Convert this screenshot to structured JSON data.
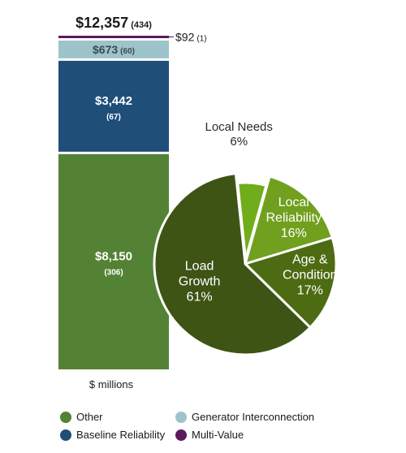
{
  "chart_data": [
    {
      "type": "bar",
      "stacked": true,
      "xlabel": "$ millions",
      "total": {
        "value_label": "$12,357",
        "count_label": "(434)"
      },
      "segments": [
        {
          "name": "Other",
          "value": 8150,
          "value_label": "$8,150",
          "count_label": "(306)",
          "color": "#548235"
        },
        {
          "name": "Baseline Reliability",
          "value": 3442,
          "value_label": "$3,442",
          "count_label": "(67)",
          "color": "#1f4e79"
        },
        {
          "name": "Generator Interconnection",
          "value": 673,
          "value_label": "$673",
          "count_label": "(60)",
          "color": "#9dc3cb"
        },
        {
          "name": "Multi-Value",
          "value": 92,
          "value_label": "$92",
          "count_label": "(1)",
          "color": "#5c1a5e"
        }
      ]
    },
    {
      "type": "pie",
      "slices": [
        {
          "line1": "Local Needs",
          "line2": "",
          "pct_label": "6%",
          "value": 6,
          "color": "#70ad1a",
          "label_outside": true
        },
        {
          "line1": "Local",
          "line2": "Reliability",
          "pct_label": "16%",
          "value": 16,
          "color": "#70a01e",
          "label_outside": false
        },
        {
          "line1": "Age &",
          "line2": "Condition",
          "pct_label": "17%",
          "value": 17,
          "color": "#4d6b12",
          "label_outside": false
        },
        {
          "line1": "Load",
          "line2": "Growth",
          "pct_label": "61%",
          "value": 61,
          "color": "#3d5415",
          "label_outside": false
        }
      ]
    }
  ],
  "legend": [
    {
      "label": "Other",
      "color": "#548235"
    },
    {
      "label": "Generator Interconnection",
      "color": "#9dc3cb"
    },
    {
      "label": "Baseline Reliability",
      "color": "#1f4e79"
    },
    {
      "label": "Multi-Value",
      "color": "#5c1a5e"
    }
  ]
}
